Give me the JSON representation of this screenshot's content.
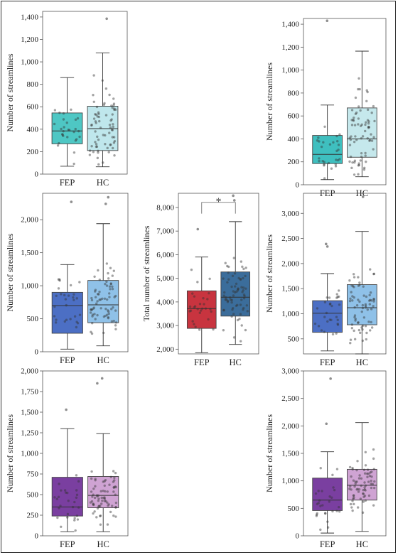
{
  "chart_data": [
    {
      "type": "boxplot",
      "ylabel": "Number of streamlines",
      "ylim": [
        0,
        1450
      ],
      "yticks": [
        0,
        200,
        400,
        600,
        800,
        1000,
        1200,
        1400
      ],
      "ytick_labels": [
        "0",
        "200",
        "400",
        "600",
        "800",
        "1,000",
        "1,200",
        "1,400"
      ],
      "categories": [
        "FEP",
        "HC"
      ],
      "colors": [
        "#4ec7c4",
        "#bfe7ec"
      ],
      "boxes": [
        {
          "min": 70,
          "q1": 270,
          "median": 385,
          "q3": 545,
          "max": 860
        },
        {
          "min": 65,
          "q1": 210,
          "median": 405,
          "q3": 605,
          "max": 1080
        }
      ],
      "outliers": [
        [],
        [
          1385
        ]
      ],
      "significance": ""
    },
    {
      "type": "boxplot",
      "ylabel": "Number of streamlines",
      "ylim": [
        0,
        1450
      ],
      "yticks": [
        0,
        200,
        400,
        600,
        800,
        1000,
        1200,
        1400
      ],
      "ytick_labels": [
        "0",
        "200",
        "400",
        "600",
        "800",
        "1,000",
        "1,200",
        "1,400"
      ],
      "categories": [
        "FEP",
        "HC"
      ],
      "colors": [
        "#3fbfbf",
        "#c5e8ec"
      ],
      "boxes": [
        {
          "min": 45,
          "q1": 185,
          "median": 265,
          "q3": 430,
          "max": 695
        },
        {
          "min": 70,
          "q1": 240,
          "median": 400,
          "q3": 670,
          "max": 1165
        }
      ],
      "outliers": [
        [
          1430
        ],
        []
      ],
      "significance": ""
    },
    {
      "type": "boxplot",
      "ylabel": "Number of streamlines",
      "ylim": [
        0,
        2400
      ],
      "yticks": [
        0,
        500,
        1000,
        1500,
        2000
      ],
      "ytick_labels": [
        "0",
        "500",
        "1,000",
        "1,500",
        "2,000"
      ],
      "categories": [
        "FEP",
        "HC"
      ],
      "colors": [
        "#4c6fc4",
        "#8fc1e8"
      ],
      "boxes": [
        {
          "min": 40,
          "q1": 280,
          "median": 700,
          "q3": 900,
          "max": 1320
        },
        {
          "min": 90,
          "q1": 440,
          "median": 710,
          "q3": 1080,
          "max": 1940
        }
      ],
      "outliers": [
        [
          2270
        ],
        [
          2240,
          2340
        ]
      ],
      "significance": ""
    },
    {
      "type": "boxplot",
      "ylabel": "Total number of streamlines",
      "ylim": [
        1800,
        8600
      ],
      "yticks": [
        2000,
        3000,
        4000,
        5000,
        6000,
        7000,
        8000
      ],
      "ytick_labels": [
        "2,000",
        "3,000",
        "4,000",
        "5,000",
        "6,000",
        "7,000",
        "8,000"
      ],
      "categories": [
        "FEP",
        "HC"
      ],
      "colors": [
        "#c8343f",
        "#3b6d9b"
      ],
      "boxes": [
        {
          "min": 1850,
          "q1": 2880,
          "median": 3720,
          "q3": 4470,
          "max": 5900
        },
        {
          "min": 2200,
          "q1": 3400,
          "median": 4200,
          "q3": 5270,
          "max": 7400
        }
      ],
      "outliers": [
        [
          7080
        ],
        [
          8300,
          8500
        ]
      ],
      "significance": "*"
    },
    {
      "type": "boxplot",
      "ylabel": "Number of streamlines",
      "ylim": [
        200,
        3400
      ],
      "yticks": [
        500,
        1000,
        1500,
        2000,
        2500,
        3000
      ],
      "ytick_labels": [
        "500",
        "1,000",
        "1,500",
        "2,000",
        "2,500",
        "3,000"
      ],
      "categories": [
        "FEP",
        "HC"
      ],
      "colors": [
        "#4c6fc4",
        "#8fc1e8"
      ],
      "boxes": [
        {
          "min": 260,
          "q1": 630,
          "median": 1010,
          "q3": 1260,
          "max": 1800
        },
        {
          "min": 200,
          "q1": 780,
          "median": 1120,
          "q3": 1580,
          "max": 2640
        }
      ],
      "outliers": [
        [
          2340,
          2390
        ],
        [
          3330
        ]
      ],
      "significance": ""
    },
    {
      "type": "boxplot",
      "ylabel": "Number of streamlines",
      "ylim": [
        0,
        2000
      ],
      "yticks": [
        0,
        250,
        500,
        750,
        1000,
        1250,
        1500,
        1750,
        2000
      ],
      "ytick_labels": [
        "0",
        "250",
        "500",
        "750",
        "1,000",
        "1,250",
        "1,500",
        "1,750",
        "2,000"
      ],
      "categories": [
        "FEP",
        "HC"
      ],
      "colors": [
        "#7a3fa0",
        "#cfa3d3"
      ],
      "boxes": [
        {
          "min": 50,
          "q1": 240,
          "median": 350,
          "q3": 710,
          "max": 1300
        },
        {
          "min": 50,
          "q1": 340,
          "median": 490,
          "q3": 720,
          "max": 1240
        }
      ],
      "outliers": [
        [
          1530
        ],
        [
          1850,
          1910
        ]
      ],
      "significance": ""
    },
    {
      "type": "boxplot",
      "ylabel": "Number of streamlines",
      "ylim": [
        0,
        3000
      ],
      "yticks": [
        0,
        500,
        1000,
        1500,
        2000,
        2500,
        3000
      ],
      "ytick_labels": [
        "0",
        "500",
        "1,000",
        "1,500",
        "2,000",
        "2,500",
        "3,000"
      ],
      "categories": [
        "FEP",
        "HC"
      ],
      "colors": [
        "#7a3fa0",
        "#cfa3d3"
      ],
      "boxes": [
        {
          "min": 50,
          "q1": 460,
          "median": 650,
          "q3": 1050,
          "max": 1530
        },
        {
          "min": 80,
          "q1": 650,
          "median": 920,
          "q3": 1210,
          "max": 2060
        }
      ],
      "outliers": [
        [
          2040,
          2860
        ],
        []
      ],
      "significance": ""
    }
  ]
}
